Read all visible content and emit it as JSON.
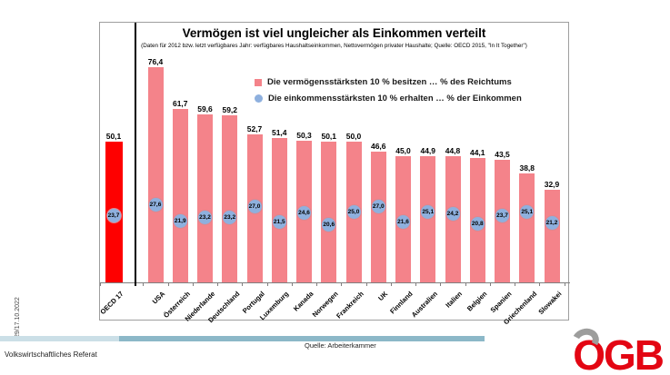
{
  "slide": {
    "sidebar_date": "29/17.10.2022",
    "footer": {
      "department": "Volkswirtschaftliches Referat",
      "source": "Quelle: Arbeiterkammer"
    },
    "logo": {
      "name": "ÖGB",
      "o": "O",
      "rest": "GB"
    },
    "colors": {
      "logo_red": "#E30613",
      "logo_gray": "#9D9D9C",
      "footer_bar_light": "#CBDFE7",
      "footer_bar_dark": "#8CB8C8"
    }
  },
  "chart_data": {
    "type": "bar",
    "title": "Vermögen ist viel ungleicher als Einkommen verteilt",
    "subtitle": "(Daten für 2012 bzw. letzt verfügbares Jahr: verfügbares Haushaltseinkommen, Nettovermögen privater Haushalte; Quelle: OECD 2015, \"In It Together\")",
    "categories": [
      "OECD 17",
      "USA",
      "Österreich",
      "Niederlande",
      "Deutschland",
      "Portugal",
      "Luxemburg",
      "Kanada",
      "Norwegen",
      "Frankreich",
      "UK",
      "Finnland",
      "Australien",
      "Italien",
      "Belgien",
      "Spanien",
      "Griechenland",
      "Slowakei"
    ],
    "series": [
      {
        "name": "Die vermögensstärksten 10 % besitzen … % des Reichtums",
        "marker": "square",
        "color": "#F4838A",
        "highlight_category": "OECD 17",
        "highlight_color": "#FE0000",
        "values": [
          50.1,
          76.4,
          61.7,
          59.6,
          59.2,
          52.7,
          51.4,
          50.3,
          50.1,
          50.0,
          46.6,
          45.0,
          44.9,
          44.8,
          44.1,
          43.5,
          38.8,
          32.9
        ],
        "labels": [
          "50,1",
          "76,4",
          "61,7",
          "59,6",
          "59,2",
          "52,7",
          "51,4",
          "50,3",
          "50,1",
          "50,0",
          "46,6",
          "45,0",
          "44,9",
          "44,8",
          "44,1",
          "43,5",
          "38,8",
          "32,9"
        ]
      },
      {
        "name": "Die einkommensstärksten 10 % erhalten … % der Einkommen",
        "marker": "circle",
        "color": "#8EB0DE",
        "values": [
          23.7,
          27.6,
          21.9,
          23.2,
          23.2,
          27.0,
          21.5,
          24.6,
          20.6,
          25.0,
          27.0,
          21.6,
          25.1,
          24.2,
          20.8,
          23.7,
          25.1,
          21.2
        ],
        "labels": [
          "23,7",
          "27,6",
          "21,9",
          "23,2",
          "23,2",
          "27,0",
          "21,5",
          "24,6",
          "20,6",
          "25,0",
          "27,0",
          "21,6",
          "25,1",
          "24,2",
          "20,8",
          "23,7",
          "25,1",
          "21,2"
        ]
      }
    ],
    "ylim": [
      0,
      80
    ],
    "grid": false,
    "legend_position": "top-center",
    "separator_after": "OECD 17"
  }
}
